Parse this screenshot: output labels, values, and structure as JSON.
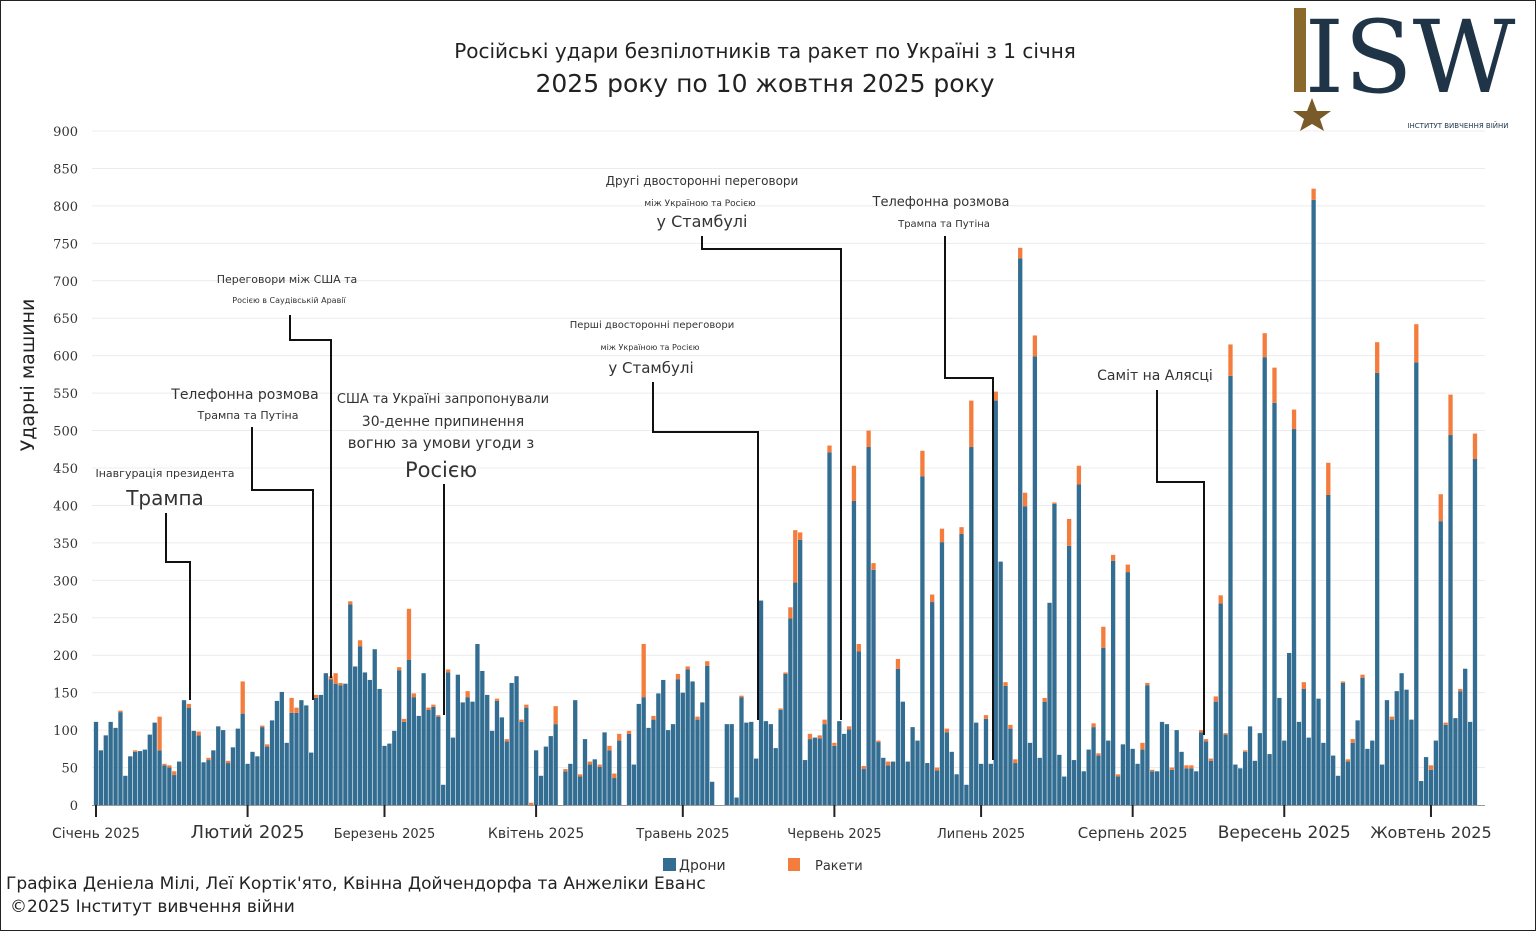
{
  "chart_data": {
    "type": "bar",
    "stacked": true,
    "title_line1": "Російські удари безпілотників та ракет по Україні з 1 січня",
    "title_line2": "2025 року по 10 жовтня 2025 року",
    "date_range": [
      "2025-01-01",
      "2025-10-10"
    ],
    "ylabel": "Ударні машини",
    "xlabel": "",
    "ylim": [
      0,
      900
    ],
    "yticks": [
      "0",
      "50",
      "100",
      "150",
      "200",
      "250",
      "300",
      "350",
      "400",
      "450",
      "500",
      "550",
      "600",
      "650",
      "700",
      "750",
      "800",
      "850",
      "900"
    ],
    "grid": true,
    "legend_position": "bottom",
    "x_tick_labels": [
      "Січень 2025",
      "Лютий 2025",
      "Березень 2025",
      "Квітень 2025",
      "Травень 2025",
      "Червень 2025",
      "Липень 2025",
      "Серпень 2025",
      "Вересень 2025",
      "Жовтень 2025"
    ],
    "series": [
      {
        "name": "Дрони",
        "color": "#336e92",
        "values": [
          111,
          73,
          93,
          111,
          103,
          124,
          39,
          65,
          71,
          72,
          74,
          94,
          110,
          73,
          53,
          50,
          40,
          58,
          140,
          130,
          99,
          93,
          57,
          60,
          73,
          105,
          100,
          56,
          77,
          102,
          122,
          55,
          71,
          65,
          104,
          78,
          113,
          139,
          151,
          83,
          123,
          123,
          140,
          133,
          70,
          143,
          147,
          176,
          168,
          162,
          160,
          162,
          268,
          185,
          212,
          177,
          167,
          208,
          155,
          79,
          82,
          99,
          180,
          111,
          194,
          144,
          119,
          176,
          127,
          131,
          118,
          27,
          177,
          90,
          174,
          137,
          144,
          138,
          215,
          179,
          147,
          99,
          139,
          117,
          85,
          163,
          172,
          111,
          130,
          0,
          73,
          39,
          78,
          92,
          108,
          0,
          45,
          55,
          140,
          38,
          88,
          54,
          61,
          51,
          97,
          73,
          36,
          86,
          0,
          95,
          54,
          135,
          144,
          103,
          114,
          149,
          167,
          100,
          108,
          168,
          150,
          181,
          165,
          114,
          137,
          186,
          31,
          0,
          0,
          108,
          108,
          10,
          144,
          110,
          111,
          62,
          273,
          112,
          108,
          76,
          127,
          175,
          249,
          297,
          354,
          60,
          88,
          90,
          89,
          108,
          471,
          79,
          112,
          95,
          101,
          406,
          205,
          48,
          478,
          314,
          84,
          63,
          53,
          58,
          182,
          138,
          58,
          104,
          86,
          439,
          56,
          271,
          46,
          351,
          97,
          71,
          41,
          362,
          27,
          478,
          110,
          55,
          115,
          55,
          540,
          325,
          159,
          102,
          56,
          730,
          399,
          83,
          599,
          63,
          138,
          270,
          402,
          67,
          38,
          346,
          60,
          428,
          45,
          74,
          104,
          66,
          210,
          86,
          326,
          38,
          81,
          311,
          75,
          55,
          74,
          160,
          45,
          45,
          111,
          108,
          47,
          100,
          71,
          49,
          49,
          45,
          97,
          85,
          59,
          138,
          269,
          94,
          573,
          54,
          49,
          71,
          105,
          59,
          96,
          598,
          68,
          537,
          143,
          86,
          203,
          502,
          111,
          155,
          90,
          808,
          142,
          83,
          414,
          66,
          39,
          163,
          58,
          83,
          113,
          170,
          75,
          86,
          577,
          54,
          140,
          114,
          152,
          176,
          154,
          114,
          591,
          32,
          64,
          47,
          86,
          379,
          107,
          494,
          116,
          152,
          182,
          111,
          462
        ]
      },
      {
        "name": "Ракети",
        "color": "#f47c3c",
        "values": [
          0,
          0,
          0,
          0,
          0,
          2,
          0,
          0,
          2,
          0,
          0,
          0,
          0,
          45,
          2,
          3,
          5,
          0,
          0,
          5,
          0,
          5,
          0,
          3,
          0,
          0,
          0,
          3,
          0,
          0,
          43,
          0,
          0,
          0,
          2,
          3,
          0,
          0,
          0,
          0,
          20,
          7,
          0,
          0,
          0,
          4,
          0,
          0,
          4,
          14,
          3,
          0,
          4,
          0,
          8,
          0,
          0,
          0,
          0,
          0,
          0,
          0,
          4,
          4,
          68,
          5,
          0,
          0,
          3,
          3,
          2,
          0,
          4,
          0,
          0,
          0,
          8,
          0,
          0,
          0,
          0,
          0,
          3,
          0,
          3,
          0,
          0,
          3,
          4,
          3,
          0,
          0,
          0,
          0,
          24,
          0,
          3,
          0,
          0,
          3,
          0,
          4,
          0,
          3,
          0,
          6,
          6,
          9,
          0,
          4,
          0,
          0,
          71,
          0,
          5,
          0,
          0,
          0,
          0,
          7,
          0,
          4,
          0,
          4,
          0,
          6,
          0,
          0,
          0,
          0,
          0,
          0,
          2,
          0,
          0,
          0,
          0,
          0,
          0,
          0,
          2,
          2,
          15,
          70,
          10,
          0,
          7,
          0,
          4,
          6,
          9,
          4,
          0,
          0,
          4,
          47,
          10,
          4,
          22,
          9,
          2,
          0,
          5,
          0,
          13,
          0,
          0,
          0,
          0,
          34,
          0,
          10,
          4,
          18,
          5,
          0,
          0,
          9,
          0,
          62,
          0,
          0,
          5,
          0,
          12,
          0,
          5,
          5,
          5,
          14,
          18,
          0,
          28,
          0,
          5,
          0,
          2,
          0,
          0,
          36,
          0,
          25,
          0,
          0,
          5,
          3,
          28,
          0,
          8,
          3,
          0,
          10,
          0,
          0,
          9,
          3,
          2,
          0,
          0,
          0,
          3,
          0,
          0,
          4,
          4,
          0,
          3,
          3,
          3,
          7,
          11,
          2,
          42,
          0,
          0,
          2,
          0,
          0,
          0,
          32,
          0,
          47,
          0,
          0,
          0,
          26,
          0,
          9,
          0,
          15,
          0,
          0,
          43,
          0,
          0,
          2,
          3,
          5,
          0,
          4,
          0,
          0,
          41,
          0,
          0,
          4,
          0,
          0,
          0,
          0,
          51,
          0,
          0,
          6,
          0,
          36,
          3,
          54,
          0,
          3,
          0,
          0,
          34
        ]
      }
    ],
    "annotations": [
      {
        "date": "2025-01-20",
        "lines": [
          "Інавгурація президента",
          "Трампа"
        ]
      },
      {
        "date": "2025-02-12",
        "lines": [
          "Телефонна розмова",
          "Трампа та Путіна"
        ]
      },
      {
        "date": "2025-02-18",
        "lines": [
          "Переговори між США та",
          "Росією в Саудівській Аравії"
        ]
      },
      {
        "date": "2025-03-11",
        "lines": [
          "США та Україні запропонували",
          "30-денне припинення",
          "вогню за умови угоди з",
          "Росією"
        ]
      },
      {
        "date": "2025-05-16",
        "lines": [
          "Перші двосторонні переговори",
          "між Україною та Росією",
          "у Стамбулі"
        ]
      },
      {
        "date": "2025-06-02",
        "lines": [
          "Другі двосторонні переговори",
          "між Україною та Росією",
          "у Стамбулі"
        ]
      },
      {
        "date": "2025-07-03",
        "lines": [
          "Телефонна розмова",
          "Трампа та Путіна"
        ]
      },
      {
        "date": "2025-08-15",
        "lines": [
          "Саміт на Алясці"
        ]
      }
    ]
  },
  "logo": {
    "text": "ISW",
    "subtitle": "ІНСТИТУТ ВИВЧЕННЯ ВІЙНИ"
  },
  "credits": {
    "graphics": "Графіка Деніела Мілі, Леї Кортік'ято, Квінна Дойчендорфа та Анжеліки Еванс",
    "copyright": "©2025 Інститут вивчення війни"
  }
}
